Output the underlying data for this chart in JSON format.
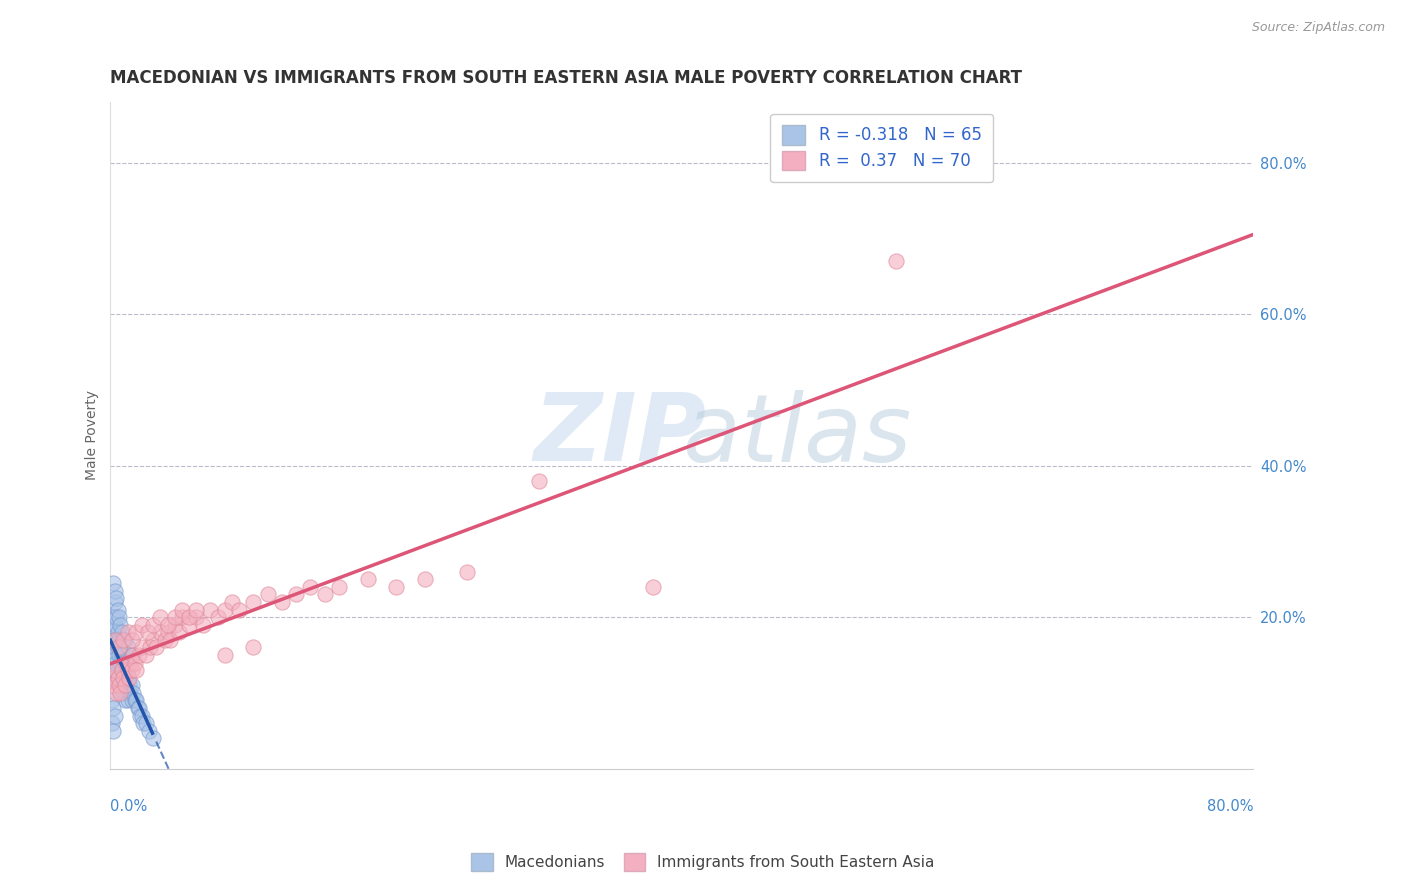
{
  "title": "MACEDONIAN VS IMMIGRANTS FROM SOUTH EASTERN ASIA MALE POVERTY CORRELATION CHART",
  "source": "Source: ZipAtlas.com",
  "ylabel": "Male Poverty",
  "series1_label": "Macedonians",
  "series1_R": -0.318,
  "series1_N": 65,
  "series1_color": "#aac4e8",
  "series1_edge_color": "#7799cc",
  "series1_line_color": "#2255aa",
  "series2_label": "Immigrants from South Eastern Asia",
  "series2_R": 0.37,
  "series2_N": 70,
  "series2_color": "#f4b0c0",
  "series2_edge_color": "#dd8898",
  "series2_line_color": "#dd5577",
  "background_color": "#ffffff",
  "grid_color": "#bbbbcc",
  "ytick_values": [
    0.2,
    0.4,
    0.6,
    0.8
  ],
  "ytick_labels": [
    "20.0%",
    "40.0%",
    "60.0%",
    "80.0%"
  ],
  "xlim": [
    0.0,
    0.8
  ],
  "ylim": [
    0.0,
    0.88
  ],
  "series1_x": [
    0.001,
    0.001,
    0.001,
    0.002,
    0.002,
    0.002,
    0.002,
    0.003,
    0.003,
    0.003,
    0.003,
    0.004,
    0.004,
    0.004,
    0.005,
    0.005,
    0.005,
    0.006,
    0.006,
    0.006,
    0.007,
    0.007,
    0.007,
    0.008,
    0.008,
    0.008,
    0.009,
    0.009,
    0.01,
    0.01,
    0.01,
    0.011,
    0.011,
    0.012,
    0.012,
    0.013,
    0.014,
    0.015,
    0.015,
    0.016,
    0.017,
    0.018,
    0.019,
    0.02,
    0.021,
    0.022,
    0.023,
    0.025,
    0.027,
    0.03,
    0.002,
    0.003,
    0.004,
    0.005,
    0.006,
    0.007,
    0.008,
    0.01,
    0.012,
    0.015,
    0.001,
    0.001,
    0.002,
    0.002,
    0.003
  ],
  "series1_y": [
    0.18,
    0.15,
    0.12,
    0.2,
    0.17,
    0.15,
    0.13,
    0.22,
    0.19,
    0.16,
    0.13,
    0.2,
    0.17,
    0.14,
    0.18,
    0.16,
    0.13,
    0.17,
    0.15,
    0.12,
    0.16,
    0.14,
    0.11,
    0.15,
    0.13,
    0.1,
    0.14,
    0.12,
    0.14,
    0.12,
    0.09,
    0.13,
    0.11,
    0.12,
    0.09,
    0.11,
    0.1,
    0.11,
    0.09,
    0.1,
    0.09,
    0.09,
    0.08,
    0.08,
    0.07,
    0.07,
    0.06,
    0.06,
    0.05,
    0.04,
    0.245,
    0.235,
    0.225,
    0.21,
    0.2,
    0.19,
    0.18,
    0.17,
    0.16,
    0.15,
    0.09,
    0.06,
    0.08,
    0.05,
    0.07
  ],
  "series1_outlier_x": [
    0.001
  ],
  "series1_outlier_y": [
    0.245
  ],
  "series2_x": [
    0.001,
    0.002,
    0.003,
    0.004,
    0.005,
    0.006,
    0.007,
    0.008,
    0.009,
    0.01,
    0.011,
    0.012,
    0.013,
    0.014,
    0.015,
    0.016,
    0.017,
    0.018,
    0.02,
    0.022,
    0.025,
    0.028,
    0.03,
    0.032,
    0.035,
    0.038,
    0.04,
    0.042,
    0.045,
    0.048,
    0.05,
    0.055,
    0.06,
    0.065,
    0.07,
    0.075,
    0.08,
    0.085,
    0.09,
    0.1,
    0.11,
    0.12,
    0.13,
    0.14,
    0.15,
    0.16,
    0.18,
    0.2,
    0.22,
    0.25,
    0.003,
    0.006,
    0.009,
    0.012,
    0.015,
    0.018,
    0.022,
    0.026,
    0.03,
    0.035,
    0.04,
    0.045,
    0.05,
    0.055,
    0.06,
    0.55,
    0.3,
    0.38,
    0.1,
    0.08
  ],
  "series2_y": [
    0.12,
    0.11,
    0.13,
    0.1,
    0.12,
    0.11,
    0.1,
    0.13,
    0.12,
    0.11,
    0.14,
    0.13,
    0.12,
    0.14,
    0.13,
    0.15,
    0.14,
    0.13,
    0.15,
    0.16,
    0.15,
    0.16,
    0.17,
    0.16,
    0.18,
    0.17,
    0.18,
    0.17,
    0.19,
    0.18,
    0.2,
    0.19,
    0.2,
    0.19,
    0.21,
    0.2,
    0.21,
    0.22,
    0.21,
    0.22,
    0.23,
    0.22,
    0.23,
    0.24,
    0.23,
    0.24,
    0.25,
    0.24,
    0.25,
    0.26,
    0.17,
    0.16,
    0.17,
    0.18,
    0.17,
    0.18,
    0.19,
    0.18,
    0.19,
    0.2,
    0.19,
    0.2,
    0.21,
    0.2,
    0.21,
    0.67,
    0.38,
    0.24,
    0.16,
    0.15
  ],
  "watermark_zip": "ZIP",
  "watermark_atlas": "atlas",
  "title_fontsize": 12,
  "axis_label_fontsize": 10,
  "tick_color": "#4488cc",
  "legend_R_color": "#3366cc"
}
